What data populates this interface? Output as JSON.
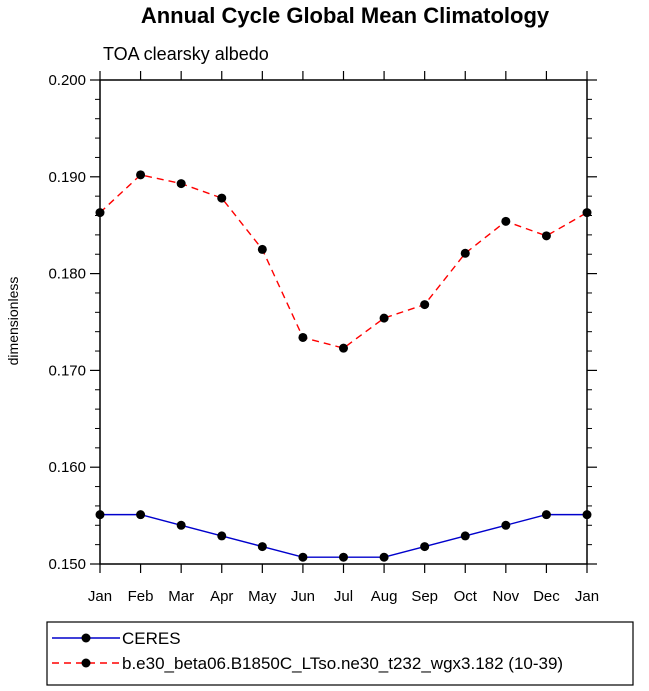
{
  "chart_data": {
    "type": "line",
    "title": "Annual Cycle Global Mean Climatology",
    "subtitle": "TOA clearsky albedo",
    "xlabel": "",
    "ylabel": "dimensionless",
    "categories": [
      "Jan",
      "Feb",
      "Mar",
      "Apr",
      "May",
      "Jun",
      "Jul",
      "Aug",
      "Sep",
      "Oct",
      "Nov",
      "Dec",
      "Jan"
    ],
    "ylim": [
      0.15,
      0.2
    ],
    "yticks": [
      "0.150",
      "0.160",
      "0.170",
      "0.180",
      "0.190",
      "0.200"
    ],
    "grid": false,
    "legend_position": "bottom",
    "series": [
      {
        "name": "CERES",
        "color": "#0000cc",
        "dash": "solid",
        "values": [
          0.1551,
          0.1551,
          0.154,
          0.1529,
          0.1518,
          0.1507,
          0.1507,
          0.1507,
          0.1518,
          0.1529,
          0.154,
          0.1551,
          0.1551
        ]
      },
      {
        "name": "b.e30_beta06.B1850C_LTso.ne30_t232_wgx3.182 (10-39)",
        "color": "#ff0000",
        "dash": "dashed",
        "values": [
          0.1863,
          0.1902,
          0.1893,
          0.1878,
          0.1825,
          0.1734,
          0.1723,
          0.1754,
          0.1768,
          0.1821,
          0.1854,
          0.1839,
          0.1863
        ]
      }
    ]
  }
}
